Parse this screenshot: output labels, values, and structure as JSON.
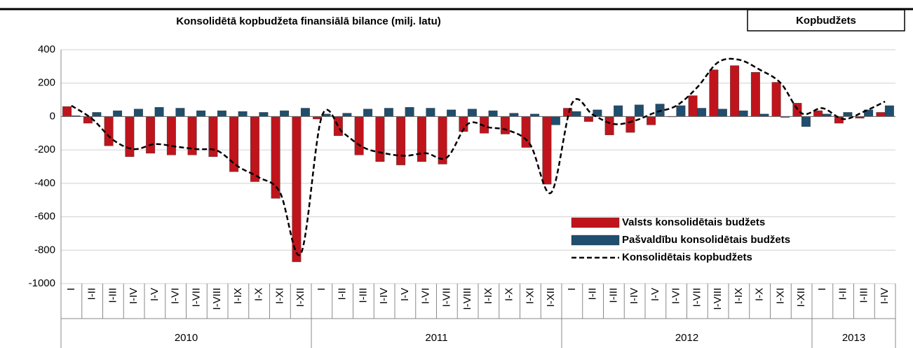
{
  "chart_data": {
    "type": "bar_line",
    "title": "Konsolidētā kopbudžeta finansiālā bilance (milj. latu)",
    "tag": "Kopbudžets",
    "categories": [
      "I",
      "I-II",
      "I-III",
      "I-IV",
      "I-V",
      "I-VI",
      "I-VII",
      "I-VIII",
      "I-IX",
      "I-X",
      "I-XI",
      "I-XII",
      "I",
      "I-II",
      "I-III",
      "I-IV",
      "I-V",
      "I-VI",
      "I-VII",
      "I-VIII",
      "I-IX",
      "I-X",
      "I-XI",
      "I-XII",
      "I",
      "I-II",
      "I-III",
      "I-IV",
      "I-V",
      "I-VI",
      "I-VII",
      "I-VIII",
      "I-IX",
      "I-X",
      "I-XI",
      "I-XII",
      "I",
      "I-II",
      "I-III",
      "I-IV"
    ],
    "years": [
      "2010",
      "2011",
      "2012",
      "2013"
    ],
    "series": [
      {
        "name": "Valsts konsolidētais budžets",
        "kind": "bar",
        "color": "#c0141c",
        "values": [
          60,
          -40,
          -175,
          -240,
          -220,
          -230,
          -230,
          -240,
          -330,
          -390,
          -490,
          -870,
          -15,
          -115,
          -230,
          -270,
          -290,
          -270,
          -285,
          -90,
          -100,
          -105,
          -185,
          -405,
          50,
          -30,
          -110,
          -95,
          -50,
          0,
          125,
          280,
          305,
          265,
          205,
          80,
          35,
          -40,
          -10,
          25
        ]
      },
      {
        "name": "Pašvaldību konsolidētais budžets",
        "kind": "bar",
        "color": "#1f4e6e",
        "values": [
          5,
          25,
          35,
          45,
          55,
          50,
          35,
          35,
          30,
          25,
          35,
          50,
          15,
          20,
          45,
          50,
          55,
          50,
          40,
          45,
          35,
          20,
          15,
          -50,
          30,
          40,
          65,
          70,
          75,
          65,
          50,
          45,
          35,
          15,
          -5,
          -60,
          15,
          25,
          40,
          65
        ]
      },
      {
        "name": "Konsolidētais kopbudžets",
        "kind": "line",
        "color": "#000000",
        "values": [
          65,
          -15,
          -140,
          -195,
          -165,
          -180,
          -195,
          -205,
          -300,
          -365,
          -455,
          -820,
          0,
          -95,
          -185,
          -220,
          -235,
          -220,
          -245,
          -45,
          -65,
          -85,
          -170,
          -455,
          80,
          10,
          -45,
          -25,
          25,
          65,
          175,
          325,
          340,
          280,
          200,
          20,
          50,
          -15,
          30,
          90
        ]
      }
    ],
    "ylim": [
      -1000,
      400
    ],
    "yticks": [
      -1000,
      -800,
      -600,
      -400,
      -200,
      0,
      200,
      400
    ],
    "grid": true,
    "legend": "lower right"
  }
}
